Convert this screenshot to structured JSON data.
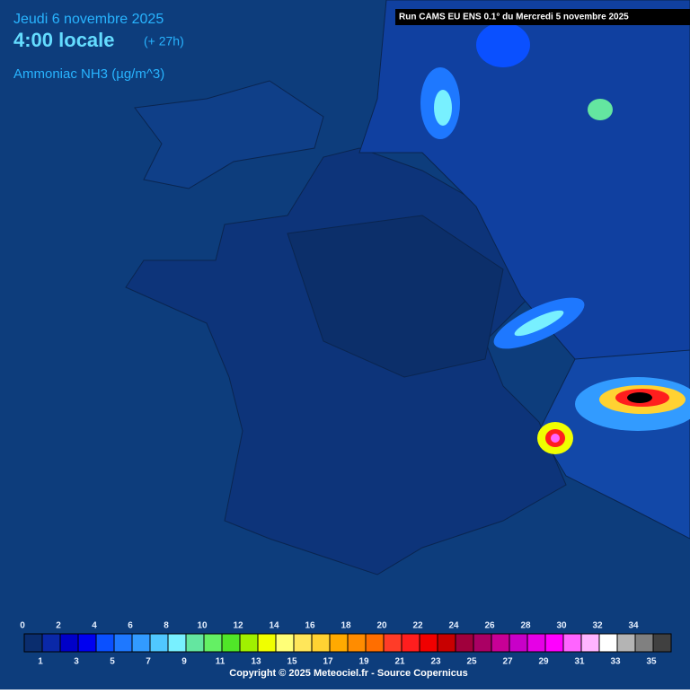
{
  "header": {
    "date": "Jeudi 6 novembre 2025",
    "time": "4:00 locale",
    "lead": "(+ 27h)",
    "field": "Ammoniac NH3 (µg/m^3)",
    "run": "Run CAMS EU ENS 0.1° du Mercredi 5 novembre 2025"
  },
  "legend": {
    "labels": [
      0,
      1,
      2,
      3,
      4,
      5,
      6,
      7,
      8,
      9,
      10,
      11,
      12,
      13,
      14,
      15,
      16,
      17,
      18,
      19,
      20,
      21,
      22,
      23,
      24,
      25,
      26,
      27,
      28,
      29,
      30,
      31,
      32,
      33,
      34,
      35
    ],
    "colors": [
      "#0a2d6e",
      "#0a28a8",
      "#0000c8",
      "#0000f0",
      "#0a50ff",
      "#1e78ff",
      "#329bff",
      "#50c8ff",
      "#78f0ff",
      "#64e6a0",
      "#64f064",
      "#50e628",
      "#a0f000",
      "#f0ff00",
      "#ffff78",
      "#ffe65a",
      "#ffd232",
      "#ffaa00",
      "#ff8c00",
      "#ff6e00",
      "#ff3c28",
      "#ff1e1e",
      "#f00000",
      "#c80000",
      "#a0003c",
      "#aa0064",
      "#c80096",
      "#c800c8",
      "#e600e6",
      "#ff00ff",
      "#ff64ff",
      "#ffb4ff",
      "#ffffff",
      "#b4b4b4",
      "#808080",
      "#404040"
    ]
  },
  "footer": "Copyright © 2025 Meteociel.fr - Source Copernicus"
}
